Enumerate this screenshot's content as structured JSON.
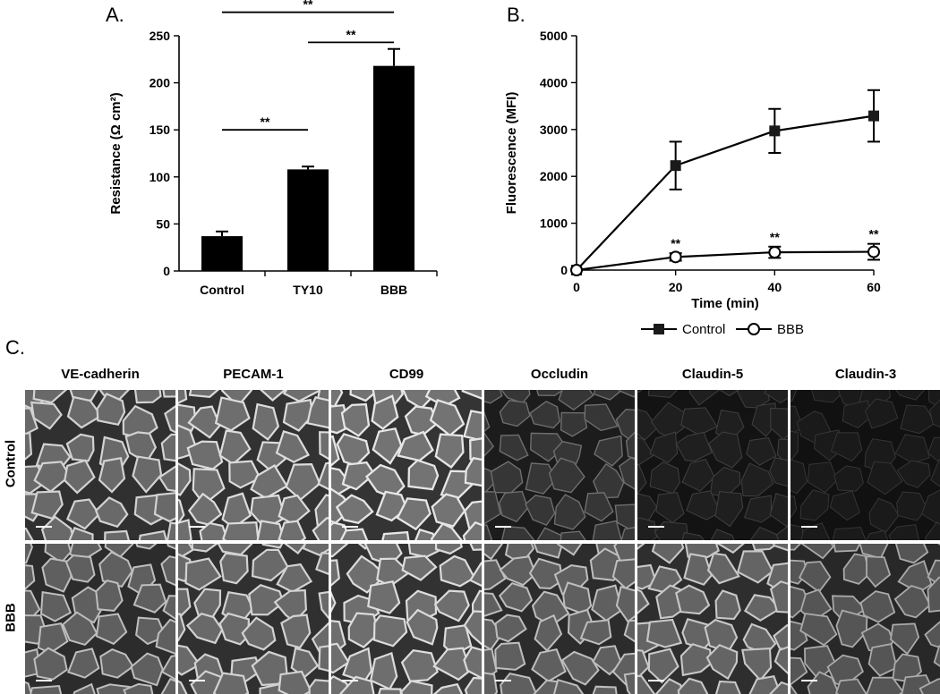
{
  "panels": {
    "a": "A.",
    "b": "B.",
    "c": "C."
  },
  "chart_data": [
    {
      "type": "bar",
      "title": "",
      "xlabel": "",
      "ylabel": "Resistance (Ω cm²)",
      "categories": [
        "Control",
        "TY10",
        "BBB"
      ],
      "values": [
        37,
        108,
        218
      ],
      "errors": [
        5,
        3,
        18
      ],
      "ylim": [
        0,
        250
      ],
      "yticks": [
        "0",
        "50",
        "100",
        "150",
        "200",
        "250"
      ],
      "grid": false,
      "bar_color": "#000000",
      "significance": [
        {
          "from": "Control",
          "to": "TY10",
          "label": "**"
        },
        {
          "from": "TY10",
          "to": "BBB",
          "label": "**"
        },
        {
          "from": "Control",
          "to": "BBB",
          "label": "**"
        }
      ]
    },
    {
      "type": "line",
      "title": "",
      "xlabel": "Time (min)",
      "ylabel": "Fluorescence (MFI)",
      "x": [
        0,
        20,
        40,
        60
      ],
      "xticks": [
        "0",
        "20",
        "40",
        "60"
      ],
      "yticks": [
        "0",
        "1000",
        "2000",
        "3000",
        "4000",
        "5000"
      ],
      "xlim": [
        0,
        60
      ],
      "ylim": [
        0,
        5000
      ],
      "grid": false,
      "legend_position": "bottom",
      "series": [
        {
          "name": "Control",
          "marker": "filled-square",
          "values": [
            0,
            2230,
            2970,
            3290
          ],
          "errors": [
            0,
            510,
            470,
            550
          ]
        },
        {
          "name": "BBB",
          "marker": "open-circle",
          "values": [
            0,
            280,
            380,
            390
          ],
          "errors": [
            0,
            80,
            120,
            170
          ],
          "annotations": [
            "",
            "**",
            "**",
            "**"
          ]
        }
      ]
    }
  ],
  "micrographs": {
    "columns": [
      "VE-cadherin",
      "PECAM-1",
      "CD99",
      "Occludin",
      "Claudin-5",
      "Claudin-3"
    ],
    "rows": [
      "Control",
      "BBB"
    ],
    "brightness": [
      [
        0.85,
        0.9,
        0.95,
        0.35,
        0.12,
        0.08
      ],
      [
        0.75,
        0.85,
        0.9,
        0.75,
        0.8,
        0.65
      ]
    ]
  }
}
